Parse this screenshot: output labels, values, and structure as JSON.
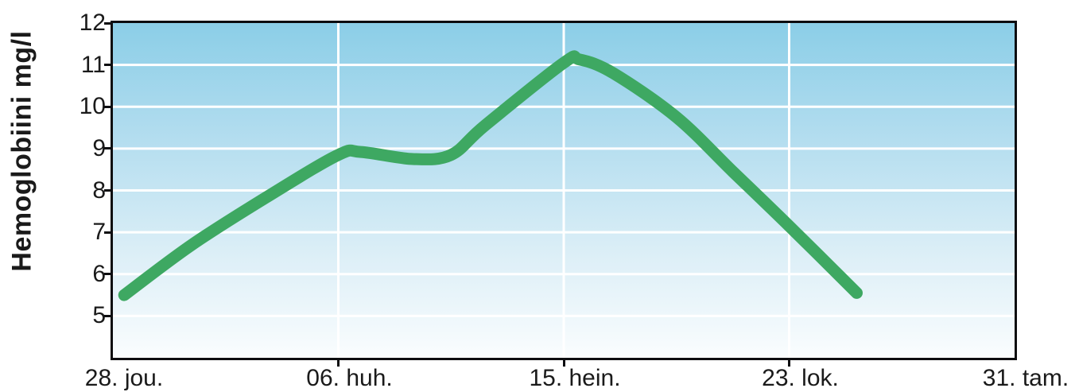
{
  "chart_data": {
    "type": "line",
    "title": "",
    "xlabel": "",
    "ylabel": "Hemoglobiini mg/l",
    "grid": true,
    "legend": "none",
    "ylim": [
      4,
      12
    ],
    "xlim": [
      0,
      4
    ],
    "y_ticks": [
      5,
      6,
      7,
      8,
      9,
      10,
      11,
      12
    ],
    "x_tick_positions": [
      0,
      1,
      2,
      3,
      4
    ],
    "x_tick_labels": [
      "28. jou.",
      "06. huh.",
      "15. hein.",
      "23. lok.",
      "31. tam."
    ],
    "plot_background_top": "#8bcee7",
    "plot_background_bottom": "#fafdfe",
    "gridline_color": "#ffffff",
    "frame_color": "#0d0d10",
    "series": [
      {
        "name": "Hemoglobiini",
        "color": "#3ea862",
        "stroke_width": 15,
        "points": [
          {
            "x": 0.05,
            "y": 5.5
          },
          {
            "x": 0.35,
            "y": 6.7
          },
          {
            "x": 0.7,
            "y": 7.9
          },
          {
            "x": 1.0,
            "y": 8.85
          },
          {
            "x": 1.1,
            "y": 8.92
          },
          {
            "x": 1.33,
            "y": 8.75
          },
          {
            "x": 1.5,
            "y": 8.85
          },
          {
            "x": 1.65,
            "y": 9.55
          },
          {
            "x": 2.0,
            "y": 11.05
          },
          {
            "x": 2.07,
            "y": 11.13
          },
          {
            "x": 2.22,
            "y": 10.8
          },
          {
            "x": 2.5,
            "y": 9.75
          },
          {
            "x": 2.75,
            "y": 8.45
          },
          {
            "x": 3.0,
            "y": 7.15
          },
          {
            "x": 3.3,
            "y": 5.55
          }
        ]
      }
    ]
  }
}
